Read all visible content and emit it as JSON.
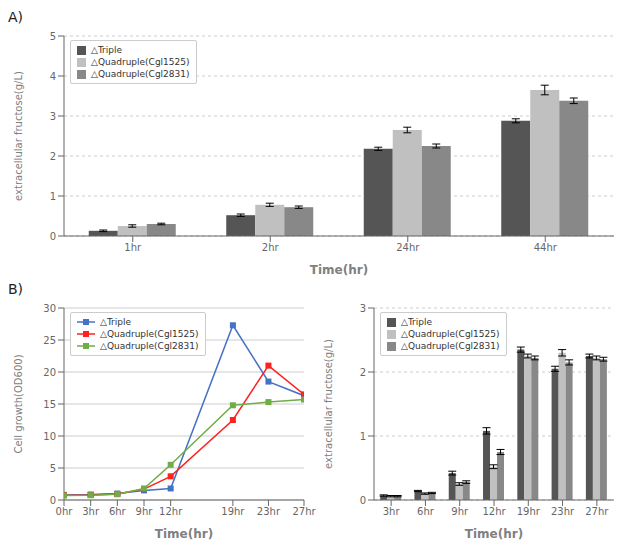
{
  "chart_data": [
    {
      "type": "bar",
      "title": "A)",
      "x_label": "Time(hr)",
      "y_label": "extracellular fructose(g/L)",
      "categories": [
        "1hr",
        "2hr",
        "24hr",
        "44hr"
      ],
      "series": [
        {
          "name": "△Triple",
          "color": "#555555",
          "values": [
            0.13,
            0.52,
            2.18,
            2.88
          ],
          "errors": [
            0.02,
            0.03,
            0.04,
            0.05
          ]
        },
        {
          "name": "△Quadruple(Cgl1525)",
          "color": "#c0c0c0",
          "values": [
            0.25,
            0.78,
            2.65,
            3.65
          ],
          "errors": [
            0.03,
            0.04,
            0.07,
            0.12
          ]
        },
        {
          "name": "△Quadruple(Cgl2831)",
          "color": "#888888",
          "values": [
            0.3,
            0.72,
            2.25,
            3.38
          ],
          "errors": [
            0.02,
            0.03,
            0.05,
            0.07
          ]
        }
      ],
      "ylim": [
        0,
        5
      ],
      "yticks": [
        0,
        1,
        2,
        3,
        4,
        5
      ],
      "grid": true,
      "legend": "upper left"
    },
    {
      "type": "line",
      "title": "B)",
      "x_label": "Time(hr)",
      "y_label": "Cell growth(OD600)",
      "x": [
        0,
        3,
        6,
        9,
        12,
        19,
        23,
        27
      ],
      "xlim": [
        0,
        27
      ],
      "xticks": [
        {
          "value": 0,
          "label": "0hr"
        },
        {
          "value": 3,
          "label": "3hr"
        },
        {
          "value": 6,
          "label": "6hr"
        },
        {
          "value": 9,
          "label": "9hr"
        },
        {
          "value": 12,
          "label": "12hr"
        },
        {
          "value": 19,
          "label": "19hr"
        },
        {
          "value": 23,
          "label": "23hr"
        },
        {
          "value": 27,
          "label": "27hr"
        }
      ],
      "series": [
        {
          "name": "△Triple",
          "color": "#4472c4",
          "values": [
            0.8,
            0.85,
            1.0,
            1.5,
            1.8,
            27.3,
            18.5,
            16.3
          ],
          "marker": "square",
          "line_style": "solid"
        },
        {
          "name": "△Quadruple(Cgl1525)",
          "color": "#ff2020",
          "values": [
            0.75,
            0.8,
            0.95,
            1.7,
            3.7,
            12.5,
            21.0,
            16.5
          ],
          "marker": "square",
          "line_style": "solid"
        },
        {
          "name": "△Quadruple(Cgl2831)",
          "color": "#70ad47",
          "values": [
            0.7,
            0.75,
            0.9,
            1.8,
            5.5,
            14.8,
            15.3,
            15.7
          ],
          "marker": "square",
          "line_style": "solid"
        }
      ],
      "ylim": [
        0,
        30
      ],
      "yticks": [
        0,
        5,
        10,
        15,
        20,
        25,
        30
      ],
      "grid": true,
      "legend": "upper left"
    },
    {
      "type": "bar",
      "x_label": "Time(hr)",
      "y_label": "extracellular fructose(g/L)",
      "categories": [
        "3hr",
        "6hr",
        "9hr",
        "12hr",
        "19hr",
        "23hr",
        "27hr"
      ],
      "series": [
        {
          "name": "△Triple",
          "color": "#555555",
          "values": [
            0.07,
            0.14,
            0.42,
            1.08,
            2.35,
            2.05,
            2.25
          ],
          "errors": [
            0.01,
            0.01,
            0.03,
            0.05,
            0.04,
            0.04,
            0.03
          ]
        },
        {
          "name": "△Quadruple(Cgl1525)",
          "color": "#c0c0c0",
          "values": [
            0.06,
            0.1,
            0.25,
            0.52,
            2.25,
            2.3,
            2.22
          ],
          "errors": [
            0.01,
            0.01,
            0.02,
            0.03,
            0.03,
            0.05,
            0.03
          ]
        },
        {
          "name": "△Quadruple(Cgl2831)",
          "color": "#888888",
          "values": [
            0.06,
            0.11,
            0.28,
            0.75,
            2.22,
            2.15,
            2.2
          ],
          "errors": [
            0.01,
            0.01,
            0.02,
            0.04,
            0.03,
            0.04,
            0.03
          ]
        }
      ],
      "ylim": [
        0,
        3
      ],
      "yticks": [
        0,
        1,
        2,
        3
      ],
      "grid": true,
      "legend": "upper left"
    }
  ]
}
